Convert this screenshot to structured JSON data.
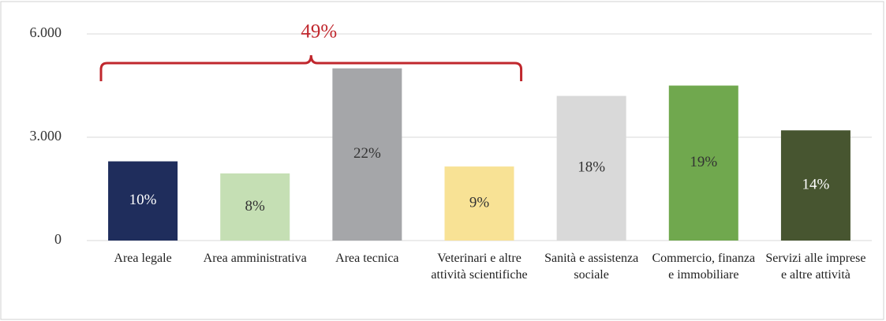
{
  "chart_data": {
    "type": "bar",
    "categories": [
      "Area legale",
      "Area amministrativa",
      "Area tecnica",
      "Veterinari e altre attività scientifiche",
      "Sanità e assistenza sociale",
      "Commercio, finanza e immobiliare",
      "Servizi alle imprese e altre attività"
    ],
    "values": [
      2300,
      1950,
      5000,
      2150,
      4200,
      4500,
      3200
    ],
    "shares": [
      "10%",
      "8%",
      "22%",
      "9%",
      "18%",
      "19%",
      "14%"
    ],
    "colors": [
      "#1f2d5c",
      "#c5dfb4",
      "#a5a6a9",
      "#f8e295",
      "#d9d9d9",
      "#70a84e",
      "#475530"
    ],
    "ylim": [
      0,
      6000
    ],
    "yticks": [
      0,
      {
        "value": 3000,
        "label": "3.000"
      },
      {
        "value": 6000,
        "label": "6.000"
      }
    ],
    "grid": true,
    "annotation": {
      "text": "49%",
      "from": 0,
      "to": 3,
      "color": "#c0272d"
    }
  }
}
